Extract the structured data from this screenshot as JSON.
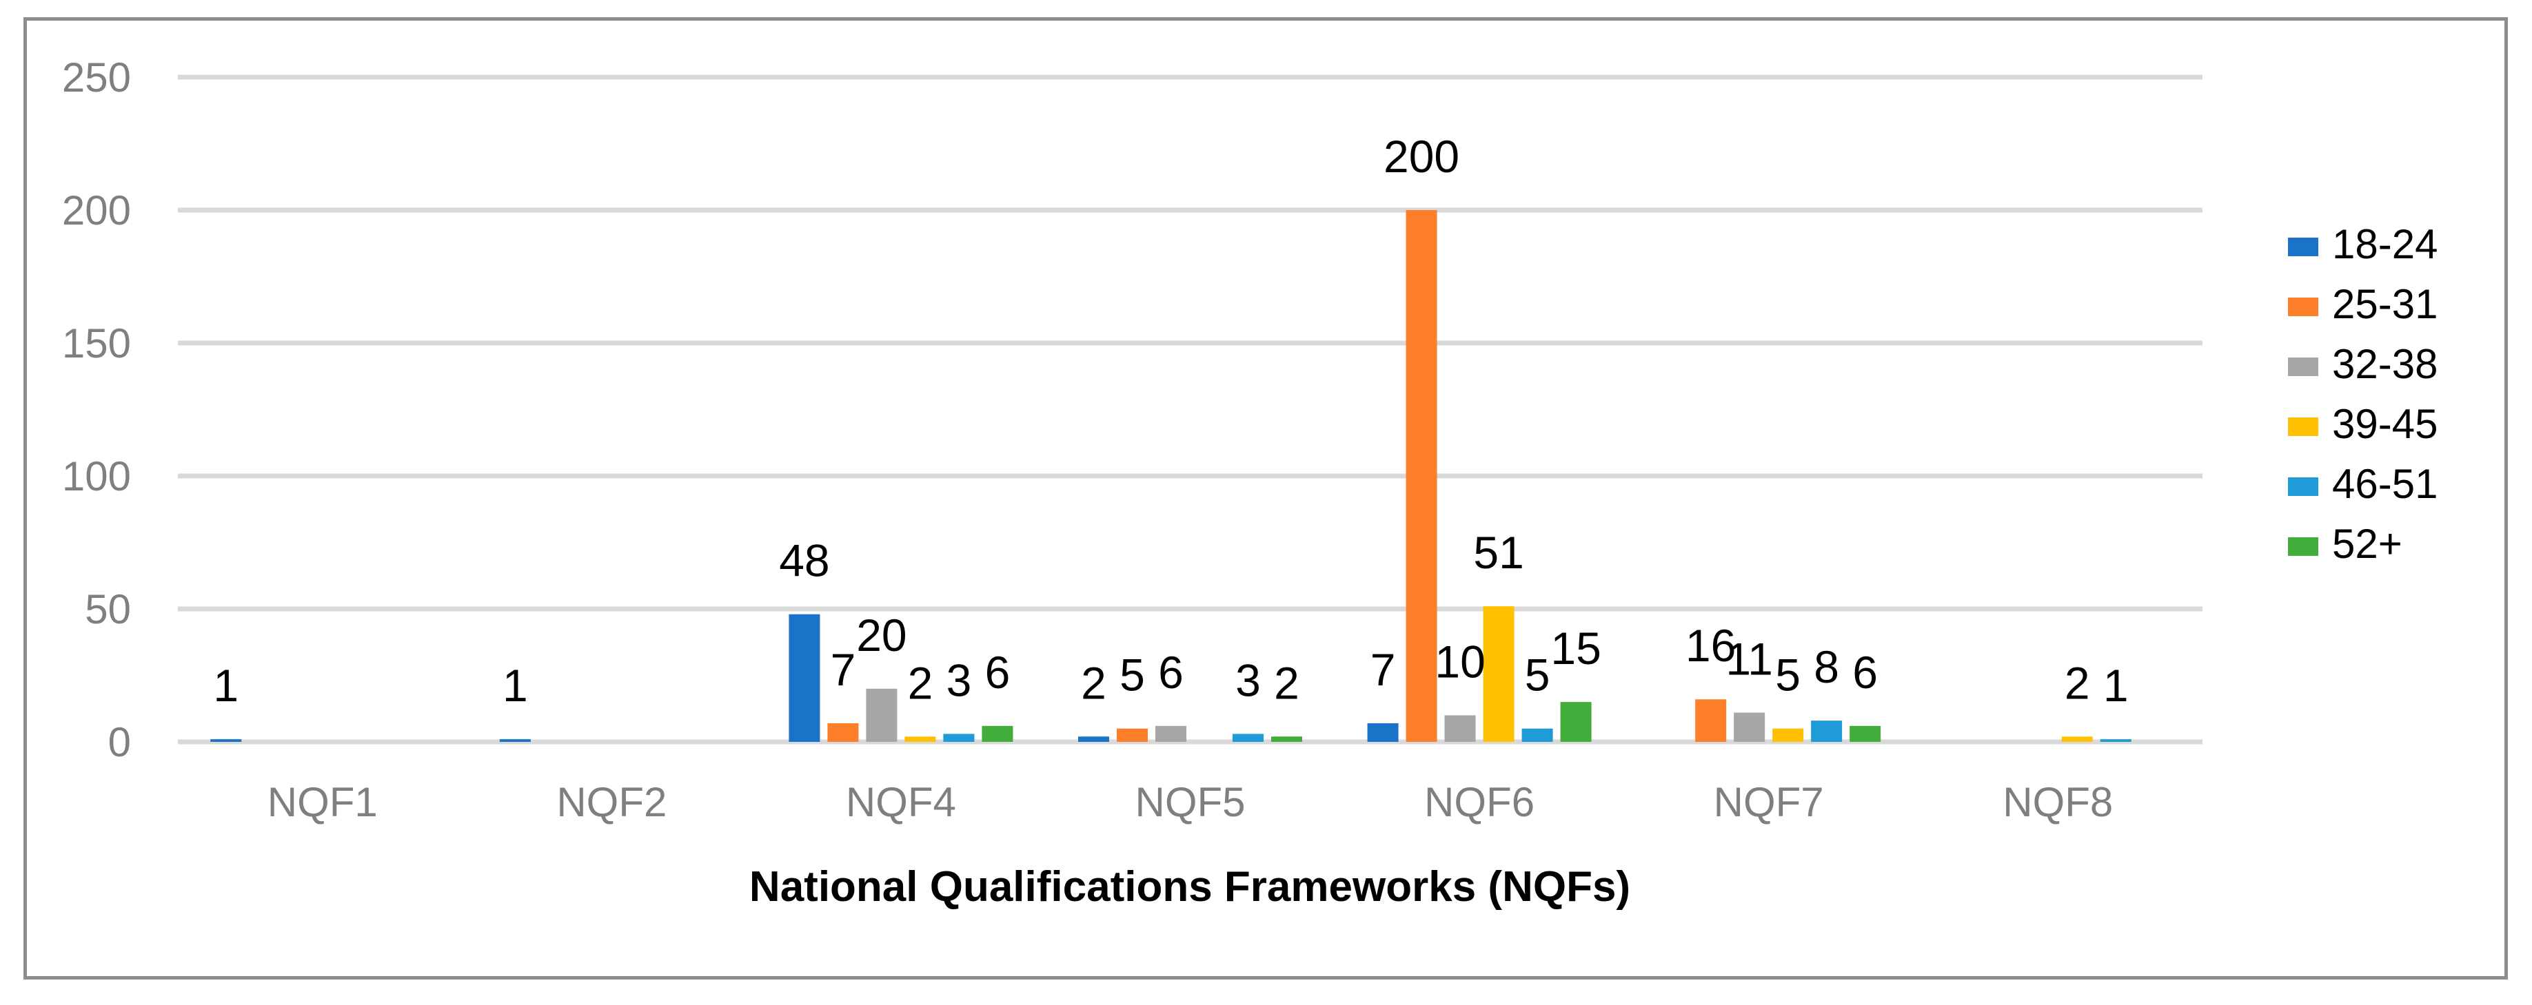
{
  "chart_data": {
    "type": "bar",
    "title": "",
    "xlabel": "National Qualifications Frameworks (NQFs)",
    "ylabel": "",
    "ylim": [
      0,
      250
    ],
    "yticks": [
      0,
      50,
      100,
      150,
      200,
      250
    ],
    "grid": true,
    "legend_position": "right",
    "categories": [
      "NQF1",
      "NQF2",
      "NQF4",
      "NQF5",
      "NQF6",
      "NQF7",
      "NQF8"
    ],
    "series": [
      {
        "name": "18-24",
        "color": "#1a73c8",
        "values": [
          1,
          1,
          48,
          2,
          7,
          0,
          0
        ]
      },
      {
        "name": "25-31",
        "color": "#fe7f2a",
        "values": [
          0,
          0,
          7,
          5,
          200,
          16,
          0
        ]
      },
      {
        "name": "32-38",
        "color": "#a6a6a6",
        "values": [
          0,
          0,
          20,
          6,
          10,
          11,
          0
        ]
      },
      {
        "name": "39-45",
        "color": "#ffc000",
        "values": [
          0,
          0,
          2,
          0,
          51,
          5,
          2
        ]
      },
      {
        "name": "46-51",
        "color": "#1f9cd8",
        "values": [
          0,
          0,
          3,
          3,
          5,
          8,
          1
        ]
      },
      {
        "name": "52+",
        "color": "#43ad3c",
        "values": [
          0,
          0,
          6,
          2,
          15,
          6,
          0
        ]
      }
    ],
    "data_labels": [
      {
        "category": "NQF1",
        "series": "18-24",
        "text": "1"
      },
      {
        "category": "NQF2",
        "series": "18-24",
        "text": "1"
      },
      {
        "category": "NQF4",
        "series": "18-24",
        "text": "48"
      },
      {
        "category": "NQF4",
        "series": "25-31",
        "text": "7"
      },
      {
        "category": "NQF4",
        "series": "32-38",
        "text": "20"
      },
      {
        "category": "NQF4",
        "series": "39-45",
        "text": "2"
      },
      {
        "category": "NQF4",
        "series": "46-51",
        "text": "3"
      },
      {
        "category": "NQF4",
        "series": "52+",
        "text": "6"
      },
      {
        "category": "NQF5",
        "series": "18-24",
        "text": "2"
      },
      {
        "category": "NQF5",
        "series": "25-31",
        "text": "5"
      },
      {
        "category": "NQF5",
        "series": "32-38",
        "text": "6"
      },
      {
        "category": "NQF5",
        "series": "46-51",
        "text": "3"
      },
      {
        "category": "NQF5",
        "series": "52+",
        "text": "2"
      },
      {
        "category": "NQF6",
        "series": "18-24",
        "text": "7"
      },
      {
        "category": "NQF6",
        "series": "25-31",
        "text": "200"
      },
      {
        "category": "NQF6",
        "series": "32-38",
        "text": "10"
      },
      {
        "category": "NQF6",
        "series": "39-45",
        "text": "51"
      },
      {
        "category": "NQF6",
        "series": "46-51",
        "text": "5"
      },
      {
        "category": "NQF6",
        "series": "52+",
        "text": "15"
      },
      {
        "category": "NQF7",
        "series": "25-31",
        "text": "16"
      },
      {
        "category": "NQF7",
        "series": "32-38",
        "text": "11"
      },
      {
        "category": "NQF7",
        "series": "39-45",
        "text": "5"
      },
      {
        "category": "NQF7",
        "series": "46-51",
        "text": "8"
      },
      {
        "category": "NQF7",
        "series": "52+",
        "text": "6"
      },
      {
        "category": "NQF8",
        "series": "39-45",
        "text": "2"
      },
      {
        "category": "NQF8",
        "series": "46-51",
        "text": "1"
      }
    ]
  },
  "colors": {
    "frame_border": "#8c8c8c",
    "gridline": "#d9d9d9",
    "tick_text": "#7f7f7f",
    "label_text": "#000000"
  },
  "legend": {
    "items": [
      "18-24",
      "25-31",
      "32-38",
      "39-45",
      "46-51",
      "52+"
    ]
  }
}
